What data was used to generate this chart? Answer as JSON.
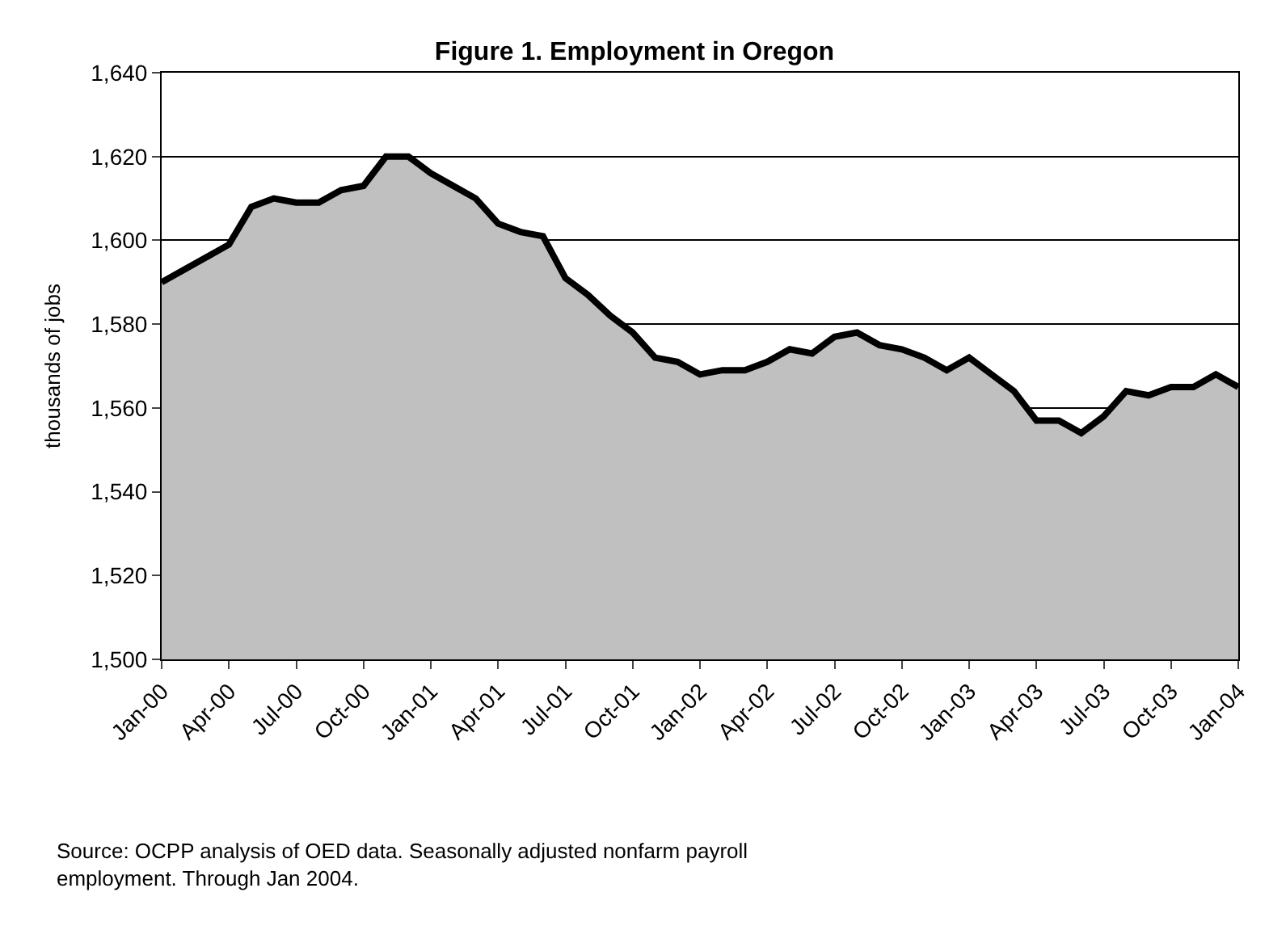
{
  "chart_data": {
    "type": "area",
    "title": "Figure 1. Employment in Oregon",
    "ylabel": "thousands of jobs",
    "categories": [
      "Jan-00",
      null,
      null,
      "Apr-00",
      null,
      null,
      "Jul-00",
      null,
      null,
      "Oct-00",
      null,
      null,
      "Jan-01",
      null,
      null,
      "Apr-01",
      null,
      null,
      "Jul-01",
      null,
      null,
      "Oct-01",
      null,
      null,
      "Jan-02",
      null,
      null,
      "Apr-02",
      null,
      null,
      "Jul-02",
      null,
      null,
      "Oct-02",
      null,
      null,
      "Jan-03",
      null,
      null,
      "Apr-03",
      null,
      null,
      "Jul-03",
      null,
      null,
      "Oct-03",
      null,
      null,
      "Jan-04"
    ],
    "series": [
      {
        "color": "#c0c0c0",
        "values": [
          1590,
          1593,
          1596,
          1599,
          1608,
          1610,
          1609,
          1609,
          1612,
          1613,
          1620,
          1620,
          1616,
          1613,
          1610,
          1604,
          1602,
          1601,
          1591,
          1587,
          1582,
          1578,
          1572,
          1571,
          1568,
          1569,
          1569,
          1571,
          1574,
          1573,
          1577,
          1578,
          1575,
          1574,
          1572,
          1569,
          1572,
          1568,
          1564,
          1557,
          1557,
          1554,
          1558,
          1564,
          1563,
          1565,
          1565,
          1568,
          1565
        ]
      }
    ],
    "ylim": [
      1500,
      1640
    ],
    "yticks": [
      {
        "value": 1500,
        "label": "1,500"
      },
      {
        "value": 1520,
        "label": "1,520"
      },
      {
        "value": 1540,
        "label": "1,540"
      },
      {
        "value": 1560,
        "label": "1,560"
      },
      {
        "value": 1580,
        "label": "1,580"
      },
      {
        "value": 1600,
        "label": "1,600"
      },
      {
        "value": 1620,
        "label": "1,620"
      },
      {
        "value": 1640,
        "label": "1,640"
      }
    ],
    "grid": "y",
    "marker": "none",
    "line_style": "solid",
    "annotations": [
      "Source: OCPP analysis of OED data. Seasonally adjusted nonfarm payroll employment. Through Jan 2004."
    ]
  }
}
